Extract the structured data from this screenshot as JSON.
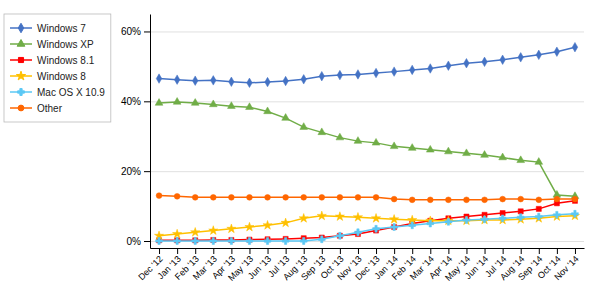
{
  "chart_data": {
    "type": "line",
    "categories": [
      "Dec '12",
      "Jan '13",
      "Feb '13",
      "Mar '13",
      "Apr '13",
      "May '13",
      "Jun '13",
      "Jul '13",
      "Aug '13",
      "Sep '13",
      "Oct '13",
      "Nov '13",
      "Dec '13",
      "Jan '14",
      "Feb '14",
      "Mar '14",
      "Apr '14",
      "May '14",
      "Jun '14",
      "Jul '14",
      "Aug '14",
      "Sep '14",
      "Oct '14",
      "Nov '14"
    ],
    "series": [
      {
        "name": "Windows 7",
        "color": "#4472C4",
        "marker": "diamond",
        "values": [
          46.5,
          46.2,
          45.9,
          46.0,
          45.6,
          45.3,
          45.5,
          45.8,
          46.3,
          47.2,
          47.5,
          47.7,
          48.1,
          48.5,
          49.0,
          49.4,
          50.2,
          50.9,
          51.3,
          51.9,
          52.6,
          53.3,
          54.2,
          55.5
        ]
      },
      {
        "name": "Windows XP",
        "color": "#70AD47",
        "marker": "triangle",
        "values": [
          39.5,
          39.8,
          39.5,
          39.1,
          38.6,
          38.3,
          37.1,
          35.2,
          32.6,
          31.1,
          29.6,
          28.6,
          28.1,
          27.1,
          26.6,
          26.1,
          25.6,
          25.1,
          24.6,
          23.9,
          23.1,
          22.6,
          13.2,
          12.8
        ]
      },
      {
        "name": "Windows 8.1",
        "color": "#FF0000",
        "marker": "square",
        "values": [
          0.2,
          0.2,
          0.2,
          0.3,
          0.3,
          0.4,
          0.5,
          0.6,
          0.8,
          1.0,
          1.5,
          2.0,
          3.0,
          4.0,
          5.0,
          5.8,
          6.5,
          7.0,
          7.5,
          8.0,
          8.5,
          9.2,
          10.8,
          11.5
        ]
      },
      {
        "name": "Windows 8",
        "color": "#FFC000",
        "marker": "star",
        "values": [
          1.5,
          2.0,
          2.5,
          3.0,
          3.5,
          4.0,
          4.5,
          5.2,
          6.5,
          7.2,
          7.0,
          6.8,
          6.5,
          6.2,
          6.0,
          5.8,
          5.8,
          5.8,
          6.0,
          6.0,
          6.2,
          6.5,
          7.0,
          7.2
        ]
      },
      {
        "name": "Mac OS X 10.9",
        "color": "#5BC8F5",
        "marker": "plus",
        "values": [
          0.0,
          0.0,
          0.0,
          0.0,
          0.0,
          0.0,
          0.0,
          0.0,
          0.0,
          0.5,
          1.5,
          2.5,
          3.5,
          4.0,
          4.5,
          5.0,
          5.5,
          6.0,
          6.2,
          6.5,
          6.8,
          7.0,
          7.5,
          7.8
        ]
      },
      {
        "name": "Other",
        "color": "#FF6600",
        "marker": "circle",
        "values": [
          13.0,
          12.8,
          12.5,
          12.5,
          12.5,
          12.5,
          12.5,
          12.5,
          12.5,
          12.5,
          12.5,
          12.5,
          12.5,
          12.0,
          11.8,
          11.8,
          11.8,
          11.8,
          11.8,
          12.0,
          12.0,
          11.8,
          12.0,
          12.0
        ]
      }
    ],
    "ylim": [
      -2,
      65
    ],
    "yticks": [
      {
        "value": 0,
        "label": "0%"
      },
      {
        "value": 20,
        "label": "20%"
      },
      {
        "value": 40,
        "label": "40%"
      },
      {
        "value": 60,
        "label": "60%"
      }
    ],
    "grid": true,
    "legend": "upper left"
  }
}
